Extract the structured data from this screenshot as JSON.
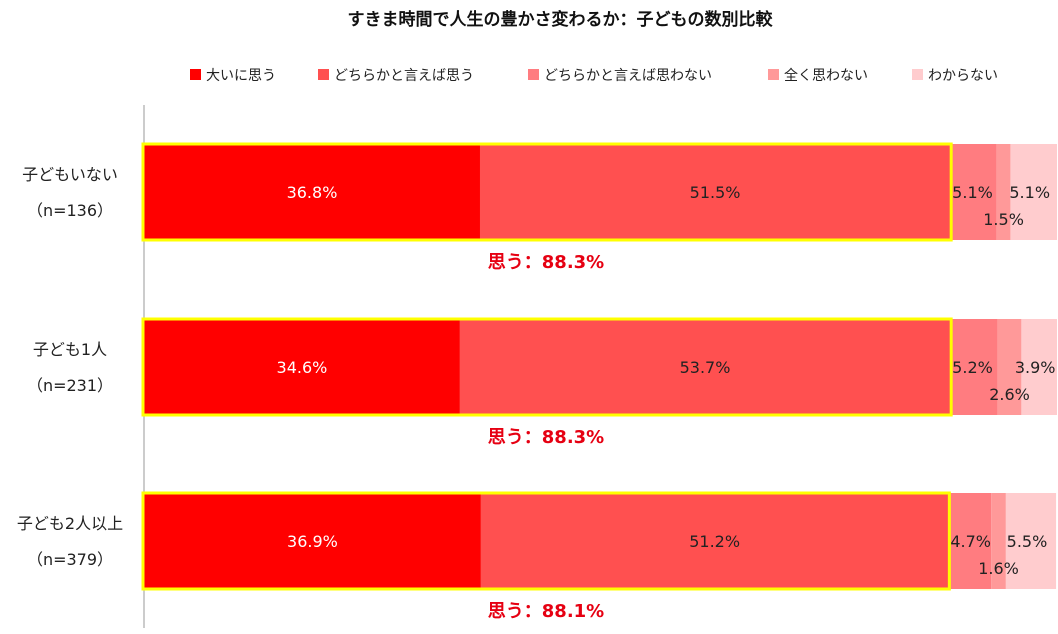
{
  "chart_data": {
    "type": "bar",
    "orientation": "horizontal",
    "stacked": true,
    "percent_stacked": true,
    "title": "すきま時間で人生の豊かさ変わるか：子どもの数別比較",
    "xlabel": "",
    "ylabel": "",
    "xlim": [
      0,
      100
    ],
    "grid": false,
    "legend_position": "top",
    "categories": [
      {
        "name": "子どもいない",
        "n": "（n=136）"
      },
      {
        "name": "子ども1人",
        "n": "（n=231）"
      },
      {
        "name": "子ども2人以上",
        "n": "（n=379）"
      }
    ],
    "series": [
      {
        "name": "大いに思う",
        "color": "#ff0000",
        "values": [
          36.8,
          34.6,
          36.9
        ],
        "labels": [
          "36.8%",
          "34.6%",
          "36.9%"
        ]
      },
      {
        "name": "どちらかと言えば思う",
        "color": "#ff5050",
        "values": [
          51.5,
          53.7,
          51.2
        ],
        "labels": [
          "51.5%",
          "53.7%",
          "51.2%"
        ]
      },
      {
        "name": "どちらかと言えば思わない",
        "color": "#ff7c80",
        "values": [
          5.1,
          5.2,
          4.7
        ],
        "labels": [
          "5.1%",
          "5.2%",
          "4.7%"
        ]
      },
      {
        "name": "全く思わない",
        "color": "#ff9999",
        "values": [
          1.5,
          2.6,
          1.6
        ],
        "labels": [
          "1.5%",
          "2.6%",
          "1.6%"
        ]
      },
      {
        "name": "わからない",
        "color": "#ffccce",
        "values": [
          5.1,
          3.9,
          5.5
        ],
        "labels": [
          "5.1%",
          "3.9%",
          "5.5%"
        ]
      }
    ],
    "highlight": {
      "color": "#ffff00",
      "labels": [
        "思う：88.3%",
        "思う：88.3%",
        "思う：88.1%"
      ],
      "values": [
        88.3,
        88.3,
        88.1
      ]
    }
  }
}
